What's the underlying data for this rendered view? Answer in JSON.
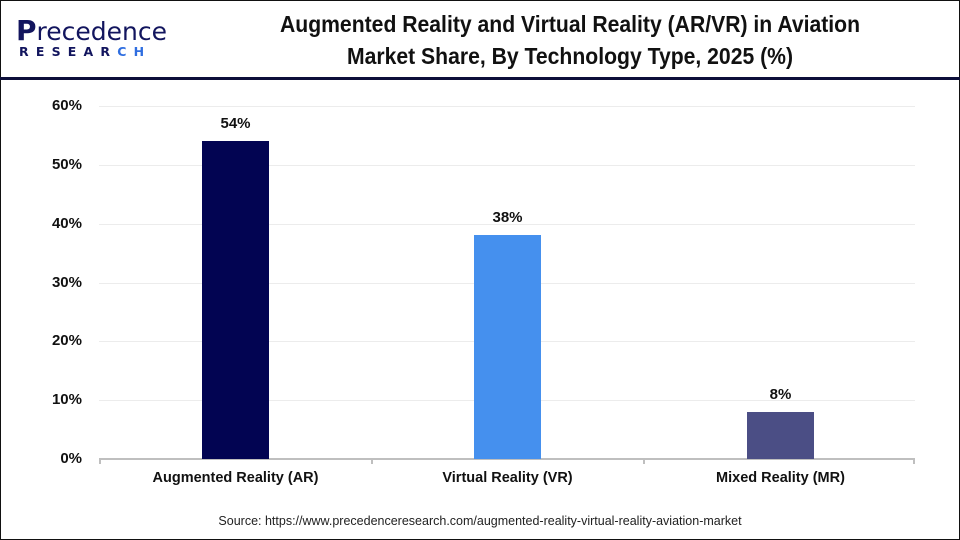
{
  "header": {
    "logo_top": "recedence",
    "logo_p": "P",
    "logo_bottom_main": "RESEAR",
    "logo_bottom_accent": "CH",
    "title_line1": "Augmented Reality and Virtual Reality (AR/VR) in Aviation",
    "title_line2": "Market Share, By Technology Type, 2025 (%)"
  },
  "colors": {
    "ar": "#020452",
    "vr": "#4590ee",
    "mr": "#4b4e85",
    "header_border": "#0d0f3a"
  },
  "yaxis": {
    "ticks": [
      "60%",
      "50%",
      "40%",
      "30%",
      "20%",
      "10%",
      "0%"
    ]
  },
  "bars": [
    {
      "label": "Augmented Reality (AR)",
      "value": 54,
      "display": "54%"
    },
    {
      "label": "Virtual Reality (VR)",
      "value": 38,
      "display": "38%"
    },
    {
      "label": "Mixed Reality (MR)",
      "value": 8,
      "display": "8%"
    }
  ],
  "source": "Source: https://www.precedenceresearch.com/augmented-reality-virtual-reality-aviation-market",
  "chart_data": {
    "type": "bar",
    "title": "Augmented Reality and Virtual Reality (AR/VR) in Aviation Market Share, By Technology Type, 2025 (%)",
    "categories": [
      "Augmented Reality (AR)",
      "Virtual Reality (VR)",
      "Mixed Reality (MR)"
    ],
    "values": [
      54,
      38,
      8
    ],
    "data_labels": [
      "54%",
      "38%",
      "8%"
    ],
    "xlabel": "",
    "ylabel": "",
    "ylim": [
      0,
      60
    ],
    "yticks": [
      "0%",
      "10%",
      "20%",
      "30%",
      "40%",
      "50%",
      "60%"
    ],
    "grid": true,
    "legend": null,
    "colors": [
      "#020452",
      "#4590ee",
      "#4b4e85"
    ]
  }
}
